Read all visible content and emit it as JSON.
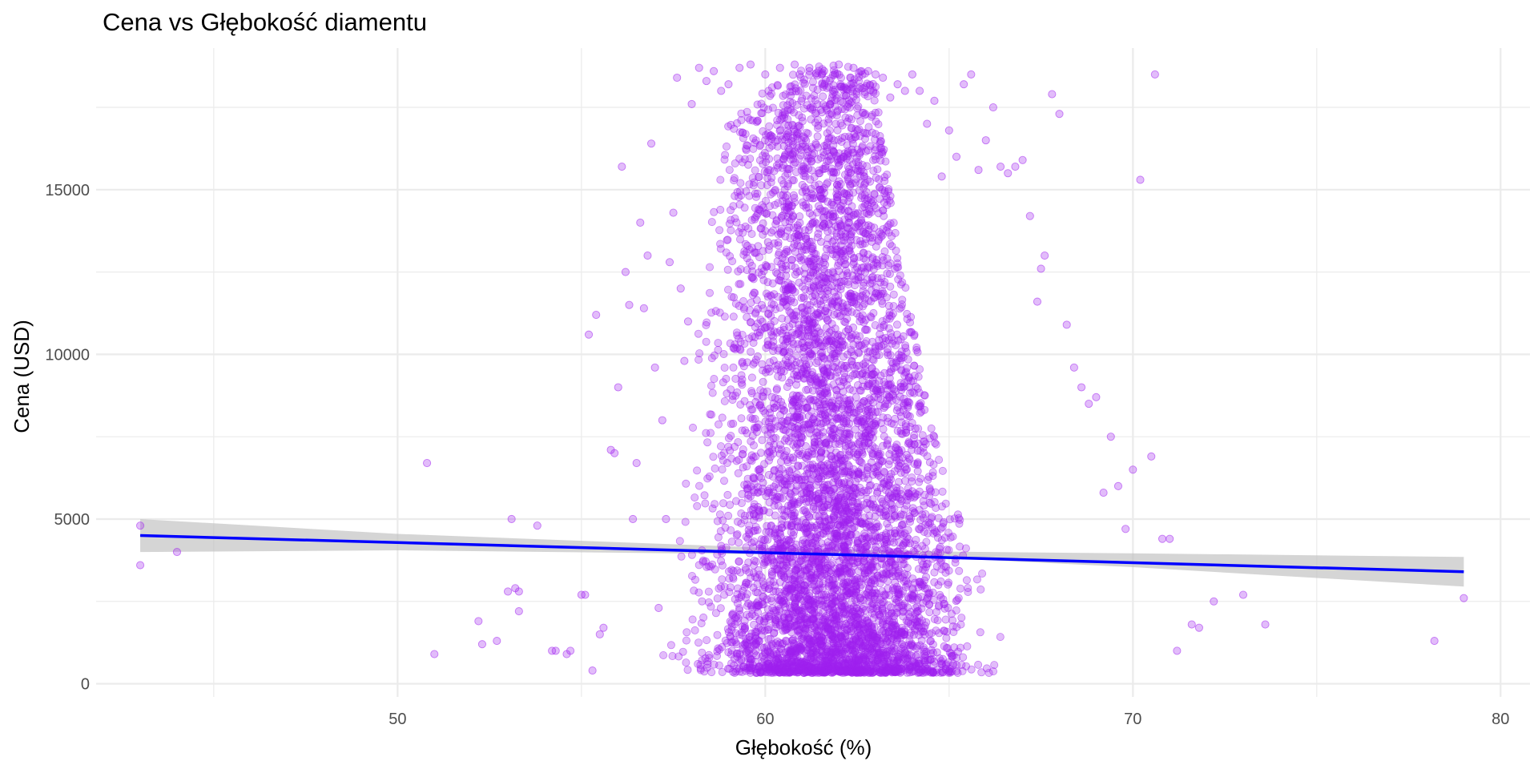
{
  "chart_data": {
    "type": "scatter",
    "title": "Cena vs Głębokość diamentu",
    "xlabel": "Głębokość (%)",
    "ylabel": "Cena (USD)",
    "xlim": [
      41.8,
      80.8
    ],
    "ylim": [
      -400,
      19300
    ],
    "x_ticks": [
      50,
      60,
      70,
      80
    ],
    "x_tick_labels": [
      "50",
      "60",
      "70",
      "80"
    ],
    "y_ticks": [
      0,
      5000,
      10000,
      15000
    ],
    "y_tick_labels": [
      "0",
      "5000",
      "10000",
      "15000"
    ],
    "grid": true,
    "legend": "none",
    "colors": {
      "points": "#a020f0",
      "trend_line": "#0000ff",
      "confidence_band": "#bebebe",
      "grid": "#ebebeb"
    },
    "series": [
      {
        "kind": "points",
        "x": [
          43.0,
          43.0,
          44.0,
          50.8,
          51.0,
          52.2,
          52.3,
          52.7,
          53.0,
          53.1,
          53.2,
          53.3,
          53.3,
          53.8,
          54.2,
          54.3,
          54.6,
          54.7,
          55.0,
          55.1,
          55.2,
          55.3,
          55.4,
          55.5,
          55.6,
          55.8,
          55.9,
          56.0,
          56.1,
          56.2,
          56.3,
          56.4,
          56.5,
          56.6,
          56.7,
          56.8,
          56.9,
          57.0,
          57.1,
          57.2,
          57.3,
          57.4,
          57.5,
          57.6,
          57.7,
          57.8,
          57.9,
          58.0,
          58.2,
          58.4,
          58.6,
          58.8,
          59.0,
          59.3,
          59.6,
          60.0,
          60.4,
          60.8,
          61.2,
          61.6,
          62.0,
          62.4,
          62.8,
          63.0,
          63.2,
          63.4,
          63.6,
          63.8,
          64.0,
          64.2,
          64.4,
          64.6,
          64.8,
          65.0,
          65.2,
          65.4,
          65.6,
          65.8,
          66.0,
          66.2,
          66.4,
          66.6,
          66.8,
          67.0,
          67.2,
          67.4,
          67.5,
          67.6,
          67.8,
          68.0,
          68.2,
          68.4,
          68.6,
          68.8,
          69.0,
          69.2,
          69.4,
          69.6,
          69.8,
          70.0,
          70.2,
          70.5,
          70.6,
          70.8,
          71.0,
          71.2,
          71.6,
          71.8,
          72.2,
          73.0,
          73.6,
          78.2,
          79.0
        ],
        "y": [
          4800,
          3600,
          4000,
          6700,
          900,
          1900,
          1200,
          1300,
          2800,
          5000,
          2900,
          2800,
          2200,
          4800,
          1000,
          1000,
          900,
          1000,
          2700,
          2700,
          10600,
          400,
          11200,
          1500,
          1700,
          7100,
          7000,
          9000,
          15700,
          12500,
          11500,
          5000,
          6700,
          14000,
          11400,
          13000,
          16400,
          9600,
          2300,
          8000,
          5000,
          12800,
          14300,
          18400,
          12000,
          9800,
          11000,
          17600,
          18700,
          18300,
          18600,
          18000,
          18200,
          18700,
          18800,
          18500,
          18700,
          18800,
          18700,
          18600,
          18800,
          18700,
          18600,
          18500,
          18400,
          17800,
          18200,
          18000,
          18500,
          18000,
          17000,
          17700,
          15400,
          16800,
          16000,
          18200,
          18500,
          15600,
          16500,
          17500,
          15700,
          15500,
          15700,
          15900,
          14200,
          11600,
          12600,
          13000,
          17900,
          17300,
          10900,
          9600,
          9000,
          8500,
          8700,
          5800,
          7500,
          6000,
          4700,
          6500,
          15300,
          6900,
          18500,
          4400,
          4400,
          1000,
          1800,
          1700,
          2500,
          2700,
          1800,
          1300,
          2600
        ]
      },
      {
        "kind": "density",
        "x": [
          57.0,
          57.5,
          58.0,
          58.5,
          59.0,
          59.5,
          60.0,
          60.5,
          61.0,
          61.5,
          62.0,
          62.5,
          63.0,
          63.5,
          64.0,
          64.5,
          65.0,
          65.5,
          66.0
        ],
        "y": [
          1400,
          4000,
          9000,
          14000,
          17000,
          17600,
          18000,
          18300,
          18700,
          18800,
          18800,
          18700,
          18300,
          14000,
          11000,
          8000,
          6000,
          4500,
          3500
        ]
      },
      {
        "kind": "trend",
        "x": [
          43.0,
          79.0
        ],
        "y": [
          4500,
          3400
        ]
      },
      {
        "kind": "band",
        "x": [
          43.0,
          50.0,
          60.0,
          65.0,
          70.0,
          79.0
        ],
        "y_low": [
          4000,
          4050,
          3930,
          3810,
          3540,
          2950
        ],
        "y_high": [
          5000,
          4550,
          4130,
          4010,
          3960,
          3850
        ]
      }
    ]
  }
}
